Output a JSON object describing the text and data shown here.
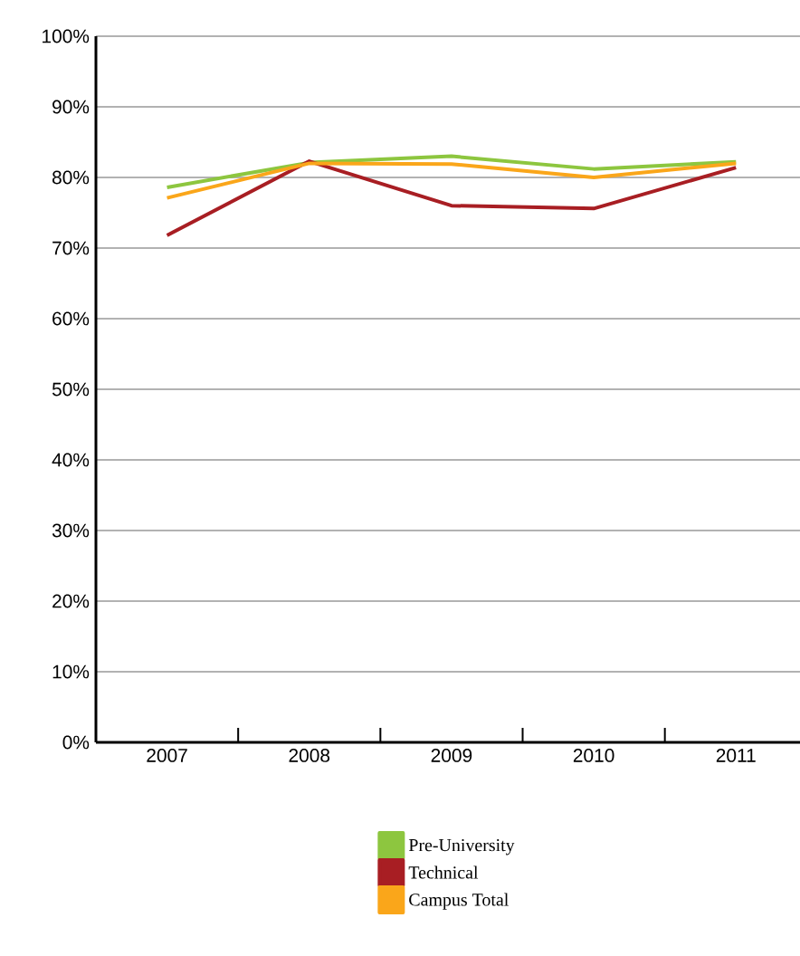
{
  "chart_data": {
    "type": "line",
    "categories": [
      "2007",
      "2008",
      "2009",
      "2010",
      "2011"
    ],
    "series": [
      {
        "name": "Pre-University",
        "color": "#8dc63f",
        "values": [
          78.6,
          82.1,
          83.0,
          81.2,
          82.2
        ]
      },
      {
        "name": "Technical",
        "color": "#a81e23",
        "values": [
          71.8,
          82.3,
          76.0,
          75.6,
          81.4
        ]
      },
      {
        "name": "Campus Total",
        "color": "#faa61a",
        "values": [
          77.1,
          82.0,
          81.9,
          80.0,
          82.0
        ]
      }
    ],
    "ylim": [
      0,
      100
    ],
    "yticks": [
      {
        "value": 0,
        "label": "0%"
      },
      {
        "value": 10,
        "label": "10%"
      },
      {
        "value": 20,
        "label": "20%"
      },
      {
        "value": 30,
        "label": "30%"
      },
      {
        "value": 40,
        "label": "40%"
      },
      {
        "value": 50,
        "label": "50%"
      },
      {
        "value": 60,
        "label": "60%"
      },
      {
        "value": 70,
        "label": "70%"
      },
      {
        "value": 80,
        "label": "80%"
      },
      {
        "value": 90,
        "label": "90%"
      },
      {
        "value": 100,
        "label": "100%"
      }
    ],
    "grid": "y",
    "legend": "bottom",
    "marker": "none",
    "line_style": "solid"
  }
}
